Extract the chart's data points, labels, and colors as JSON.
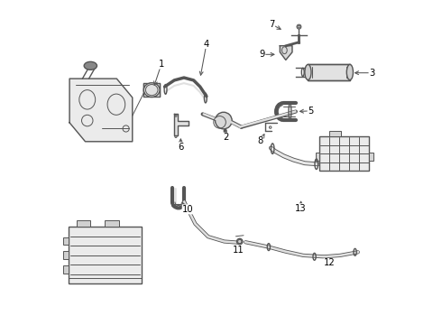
{
  "bg_color": "#ffffff",
  "line_color": "#555555",
  "label_color": "#000000",
  "figsize": [
    4.9,
    3.6
  ],
  "dpi": 100
}
